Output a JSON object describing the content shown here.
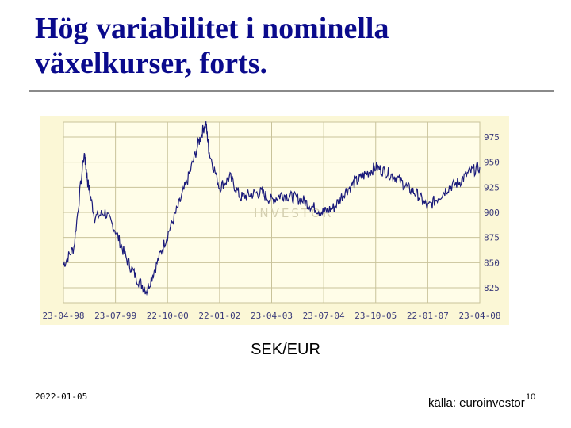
{
  "slide": {
    "title_line1": "Hög variabilitet i nominella",
    "title_line2": "växelkurser, forts.",
    "caption": "SEK/EUR",
    "date": "2022-01-05",
    "source": "källa: euroinvestor",
    "page_number": "10"
  },
  "colors": {
    "title": "#0a0a8c",
    "line": "#1a1a7a",
    "grid": "#c9c39a",
    "chart_bg": "#fbf7d6",
    "axis_text": "#3a3a7a"
  },
  "chart_data": {
    "type": "line",
    "title": "",
    "xlabel": "",
    "ylabel": "",
    "x_tick_labels": [
      "23-04-98",
      "23-07-99",
      "22-10-00",
      "22-01-02",
      "23-04-03",
      "23-07-04",
      "23-10-05",
      "22-01-07",
      "23-04-08"
    ],
    "y_ticks": [
      825,
      850,
      875,
      900,
      925,
      950,
      975
    ],
    "ylim": [
      810,
      990
    ],
    "grid": true,
    "watermark": "INVESTOR",
    "series": [
      {
        "x": [
          "1998-04",
          "1998-07",
          "1998-10",
          "1998-11",
          "1999-01",
          "1999-04",
          "1999-07",
          "1999-10",
          "2000-01",
          "2000-04",
          "2000-07",
          "2000-10",
          "2001-01",
          "2001-04",
          "2001-07",
          "2001-09",
          "2001-10",
          "2002-01",
          "2002-04",
          "2002-07",
          "2002-10",
          "2003-01",
          "2003-04",
          "2003-07",
          "2003-10",
          "2004-01",
          "2004-04",
          "2004-07",
          "2004-10",
          "2005-01",
          "2005-04",
          "2005-07",
          "2005-10",
          "2006-01",
          "2006-04",
          "2006-07",
          "2006-10",
          "2007-01",
          "2007-04",
          "2007-07",
          "2007-10",
          "2008-01",
          "2008-04"
        ],
        "values": [
          848,
          865,
          960,
          930,
          895,
          900,
          882,
          855,
          835,
          822,
          850,
          878,
          905,
          935,
          970,
          990,
          960,
          925,
          935,
          915,
          918,
          920,
          912,
          918,
          915,
          912,
          905,
          900,
          905,
          920,
          930,
          938,
          945,
          940,
          935,
          925,
          918,
          905,
          915,
          925,
          930,
          940,
          945
        ]
      }
    ]
  }
}
